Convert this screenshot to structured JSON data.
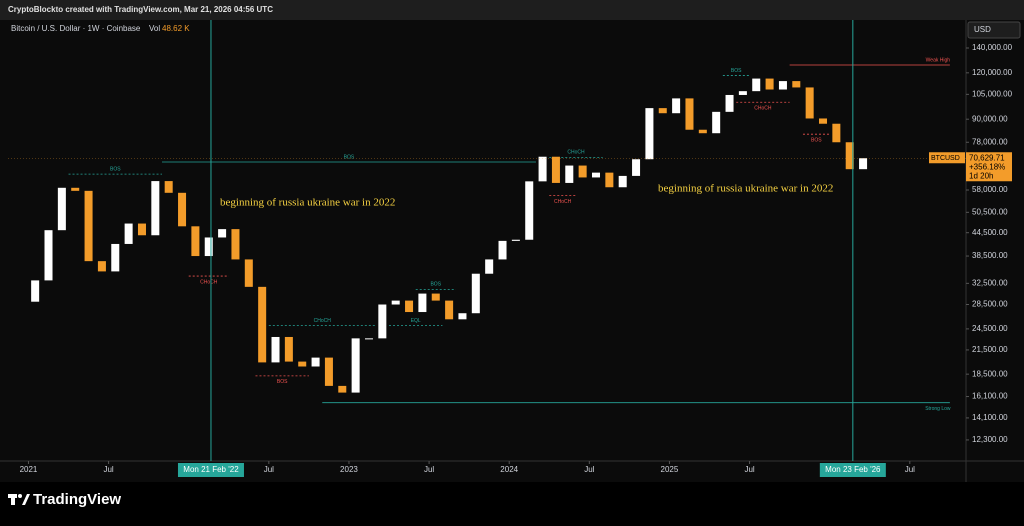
{
  "header": {
    "credit": "CryptoBlockto created with TradingView.com, Mar 21, 2026 04:56 UTC",
    "symbol_line": "Bitcoin / U.S. Dollar · 1W · Coinbase",
    "vol_label": "Vol",
    "vol_value": "48.62 K",
    "currency": "USD",
    "brand": "TradingView"
  },
  "chart_data": {
    "type": "candlestick",
    "log_scale": true,
    "up_color": "#ffffff",
    "down_color": "#f39c2a",
    "x": [
      "2020-12",
      "2021-01",
      "2021-02",
      "2021-03",
      "2021-04",
      "2021-05",
      "2021-06",
      "2021-07",
      "2021-08",
      "2021-09",
      "2021-10",
      "2021-11",
      "2021-12",
      "2022-01",
      "2022-02",
      "2022-03",
      "2022-04",
      "2022-05",
      "2022-06",
      "2022-07",
      "2022-08",
      "2022-09",
      "2022-10",
      "2022-11",
      "2022-12",
      "2023-01",
      "2023-02",
      "2023-03",
      "2023-04",
      "2023-05",
      "2023-06",
      "2023-07",
      "2023-08",
      "2023-09",
      "2023-10",
      "2023-11",
      "2023-12",
      "2024-01",
      "2024-02",
      "2024-03",
      "2024-04",
      "2024-05",
      "2024-06",
      "2024-07",
      "2024-08",
      "2024-09",
      "2024-10",
      "2024-11",
      "2024-12",
      "2025-01",
      "2025-02",
      "2025-03",
      "2025-04",
      "2025-05",
      "2025-06",
      "2025-07",
      "2025-08",
      "2025-09",
      "2025-10",
      "2025-11",
      "2025-12",
      "2026-01",
      "2026-02",
      "2026-03"
    ],
    "series": [
      {
        "name": "BTCUSD",
        "values": [
          29000,
          33100,
          45200,
          58800,
          57700,
          37300,
          35000,
          41500,
          47100,
          43800,
          61300,
          57000,
          46300,
          38500,
          43200,
          45500,
          37700,
          31800,
          19900,
          23300,
          20000,
          19400,
          20500,
          17200,
          16500,
          23100,
          23100,
          28500,
          29200,
          27200,
          30500,
          29200,
          26000,
          27000,
          34500,
          37700,
          42300,
          42600,
          61200,
          71300,
          60600,
          67500,
          62700,
          64600,
          59000,
          63300,
          70200,
          96400,
          93400,
          102400,
          84300,
          82500,
          94200,
          104600,
          107100,
          115800,
          108200,
          114000,
          109600,
          90400,
          87500,
          78000,
          66000,
          70629.71
        ]
      }
    ],
    "last_label": "70,629.71",
    "last_change": "+356.18%",
    "last_countdown": "1d 20h",
    "xlim": [
      "2020-11-15",
      "2026-11-05"
    ],
    "xticks": [
      {
        "value": "2021-01",
        "label": "2021"
      },
      {
        "value": "2021-07",
        "label": "Jul"
      },
      {
        "value": "2022-07",
        "label": "Jul"
      },
      {
        "value": "2023-01",
        "label": "2023"
      },
      {
        "value": "2023-07",
        "label": "Jul"
      },
      {
        "value": "2024-01",
        "label": "2024"
      },
      {
        "value": "2024-07",
        "label": "Jul"
      },
      {
        "value": "2025-01",
        "label": "2025"
      },
      {
        "value": "2025-07",
        "label": "Jul"
      },
      {
        "value": "2026-07",
        "label": "Jul"
      }
    ],
    "ylim": [
      10860,
      164500
    ],
    "yticks": [
      {
        "value": 140000,
        "label": "140,000.00"
      },
      {
        "value": 120000,
        "label": "120,000.00"
      },
      {
        "value": 105000,
        "label": "105,000.00"
      },
      {
        "value": 90000,
        "label": "90,000.00"
      },
      {
        "value": 78000,
        "label": "78,000.00"
      },
      {
        "value": 58000,
        "label": "58,000.00"
      },
      {
        "value": 50500,
        "label": "50,500.00"
      },
      {
        "value": 44500,
        "label": "44,500.00"
      },
      {
        "value": 38500,
        "label": "38,500.00"
      },
      {
        "value": 32500,
        "label": "32,500.00"
      },
      {
        "value": 28500,
        "label": "28,500.00"
      },
      {
        "value": 24500,
        "label": "24,500.00"
      },
      {
        "value": 21500,
        "label": "21,500.00"
      },
      {
        "value": 18500,
        "label": "18,500.00"
      },
      {
        "value": 16100,
        "label": "16,100.00"
      },
      {
        "value": 14100,
        "label": "14,100.00"
      },
      {
        "value": 12300,
        "label": "12,300.00"
      }
    ],
    "markers": [
      {
        "x": "2022-02-21",
        "label": "Mon 21 Feb '22"
      },
      {
        "x": "2026-02-23",
        "label": "Mon 23 Feb '26"
      }
    ],
    "levels": [
      {
        "label": "BOS",
        "value": 64000,
        "from": "2021-04",
        "to": "2021-11",
        "color": "#26a69a"
      },
      {
        "label": "BOS",
        "value": 69000,
        "from": "2021-11",
        "to": "2024-03",
        "color": "#26a69a"
      },
      {
        "label": "CHoCH",
        "value": 34000,
        "from": "2022-01",
        "to": "2022-04",
        "color": "#ef5350"
      },
      {
        "label": "BOS",
        "value": 18300,
        "from": "2022-06",
        "to": "2022-10",
        "color": "#ef5350"
      },
      {
        "label": "CHoCH",
        "value": 25000,
        "from": "2022-07",
        "to": "2023-03",
        "color": "#26a69a"
      },
      {
        "label": "BOS",
        "value": 31300,
        "from": "2023-06",
        "to": "2023-09",
        "color": "#26a69a"
      },
      {
        "label": "EQL",
        "value": 25000,
        "from": "2023-04",
        "to": "2023-08",
        "color": "#26a69a"
      },
      {
        "label": "CHoCH",
        "value": 71000,
        "from": "2024-04",
        "to": "2024-08",
        "color": "#26a69a"
      },
      {
        "label": "CHoCH",
        "value": 56000,
        "from": "2024-04",
        "to": "2024-06",
        "color": "#ef5350"
      },
      {
        "label": "BOS",
        "value": 118000,
        "from": "2025-05",
        "to": "2025-07",
        "color": "#26a69a"
      },
      {
        "label": "CHoCH",
        "value": 100000,
        "from": "2025-06",
        "to": "2025-10",
        "color": "#ef5350"
      },
      {
        "label": "BOS",
        "value": 82000,
        "from": "2025-11",
        "to": "2026-01",
        "color": "#ef5350"
      },
      {
        "label": "Weak High",
        "value": 126000,
        "from": "2025-10",
        "to": "2026-10",
        "color": "#ef5350"
      },
      {
        "label": "Strong Low",
        "value": 15500,
        "from": "2022-11",
        "to": "2026-10",
        "color": "#26a69a"
      }
    ],
    "annotations": [
      "beginning  of russia ukraine war in 2022",
      "beginning  of russia ukraine war in 2022"
    ]
  }
}
